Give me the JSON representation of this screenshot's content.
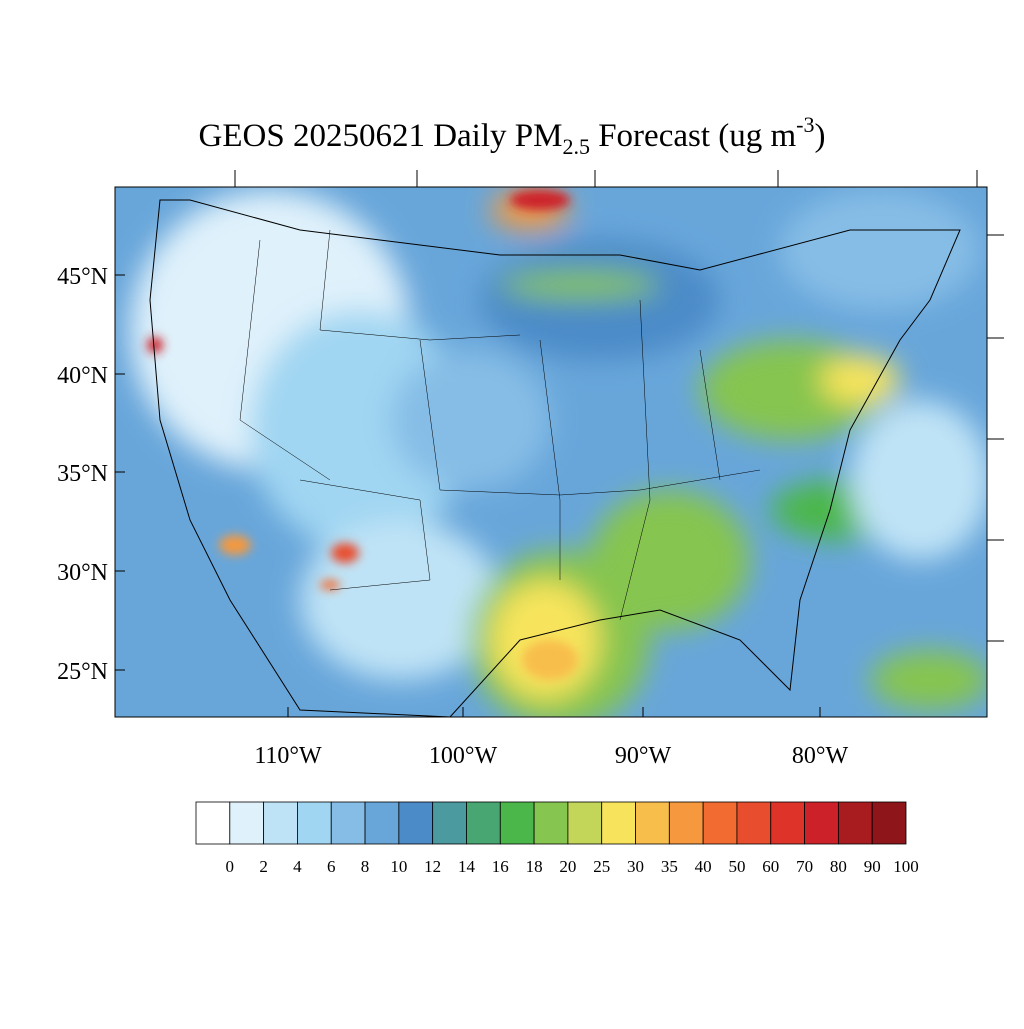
{
  "title": {
    "main": "GEOS 20250621 Daily PM",
    "sub": "2.5",
    "after": " Forecast (ug m",
    "sup": "-3",
    "end": ")"
  },
  "lat_labels": [
    "45°N",
    "40°N",
    "35°N",
    "30°N",
    "25°N"
  ],
  "lon_labels": [
    "110°W",
    "100°W",
    "90°W",
    "80°W"
  ],
  "colorbar": {
    "levels": [
      0,
      2,
      4,
      6,
      8,
      10,
      12,
      14,
      16,
      18,
      20,
      25,
      30,
      35,
      40,
      50,
      60,
      70,
      80,
      90,
      100
    ],
    "colors": [
      "#ffffff",
      "#dff1fb",
      "#bfe3f6",
      "#a0d6f2",
      "#86bde6",
      "#68a6da",
      "#4b8bc8",
      "#4a9aa0",
      "#48a673",
      "#4bb74a",
      "#86c54f",
      "#c3d65a",
      "#f7e45c",
      "#f8be4b",
      "#f6983d",
      "#f26c32",
      "#e84d2e",
      "#dd3329",
      "#cd2129",
      "#a81b1f",
      "#8e1519"
    ]
  }
}
